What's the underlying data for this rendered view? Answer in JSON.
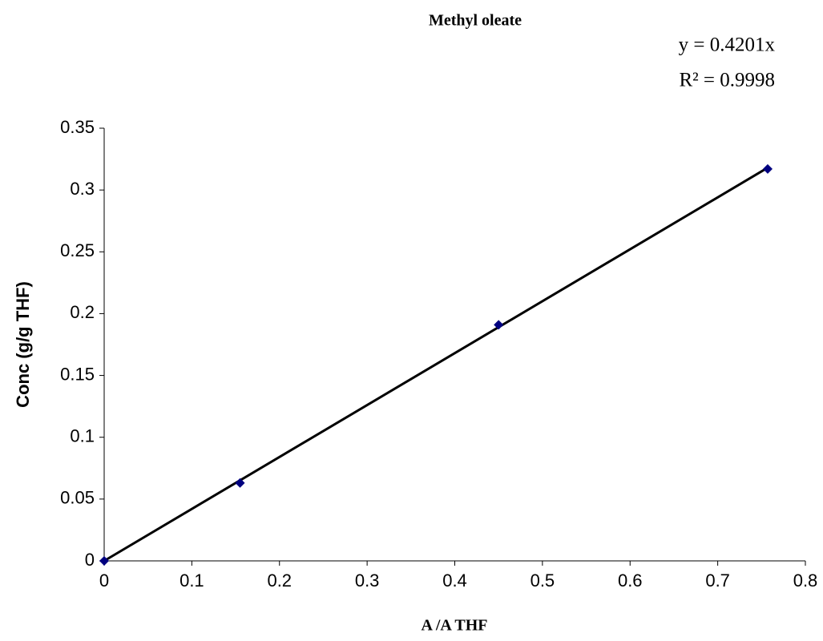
{
  "chart_data": {
    "type": "scatter",
    "title": "Methyl oleate",
    "x_label": "A /A THF",
    "y_label": "Conc (g/g THF)",
    "series": [
      {
        "name": "Methyl oleate",
        "color": "#000080",
        "x": [
          0,
          0.155,
          0.45,
          0.757
        ],
        "values": [
          0,
          0.063,
          0.191,
          0.317
        ]
      }
    ],
    "trendline": {
      "slope": 0.4201,
      "color": "#000000",
      "equation": "y = 0.4201x",
      "r2": "R² = 0.9998"
    },
    "xlim": [
      0,
      0.8
    ],
    "xticks": [
      0,
      0.1,
      0.2,
      0.3,
      0.4,
      0.5,
      0.6,
      0.7,
      0.8
    ],
    "ylim": [
      0,
      0.35
    ],
    "yticks": [
      0,
      0.05,
      0.1,
      0.15,
      0.2,
      0.25,
      0.3,
      0.35
    ],
    "grid": false
  }
}
